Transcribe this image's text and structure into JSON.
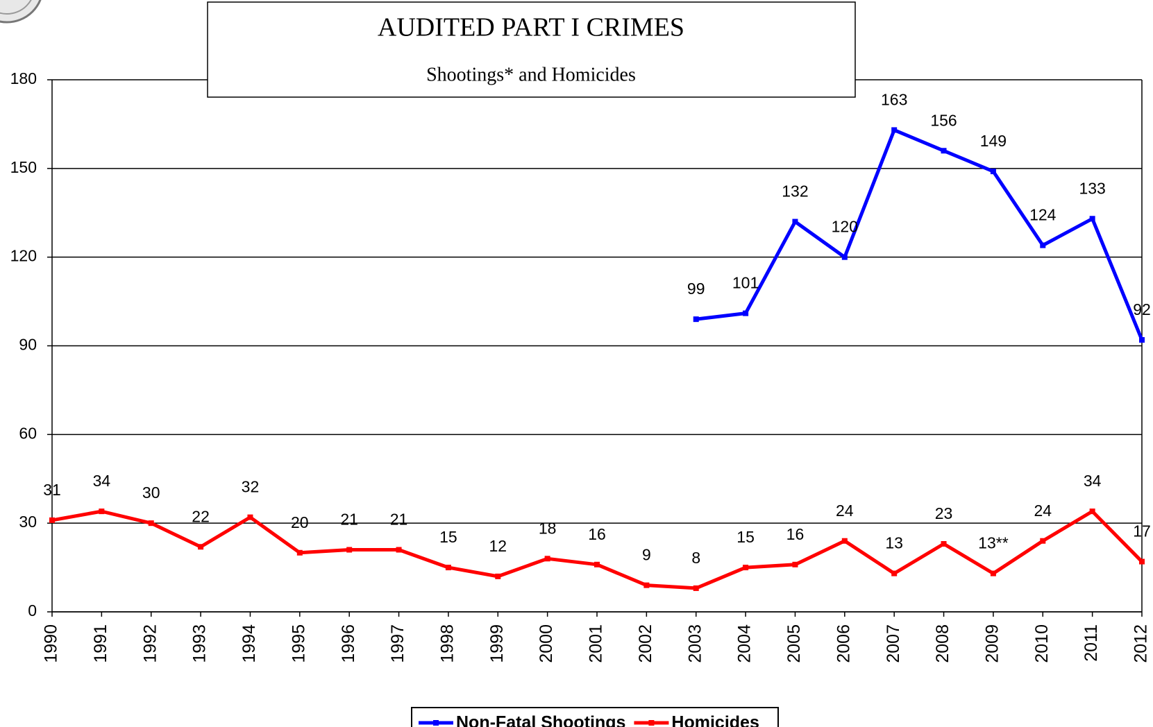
{
  "chart_data": {
    "type": "line",
    "title": "AUDITED PART I CRIMES",
    "subtitle": "Shootings* and Homicides",
    "categories": [
      "1990",
      "1991",
      "1992",
      "1993",
      "1994",
      "1995",
      "1996",
      "1997",
      "1998",
      "1999",
      "2000",
      "2001",
      "2002",
      "2003",
      "2004",
      "2005",
      "2006",
      "2007",
      "2008",
      "2009",
      "2010",
      "2011",
      "2012"
    ],
    "series": [
      {
        "name": "Non-Fatal Shootings",
        "color": "#0000ff",
        "values": [
          null,
          null,
          null,
          null,
          null,
          null,
          null,
          null,
          null,
          null,
          null,
          null,
          null,
          99,
          101,
          132,
          120,
          163,
          156,
          149,
          124,
          133,
          92
        ]
      },
      {
        "name": "Homicides",
        "color": "#ff0000",
        "values": [
          31,
          34,
          30,
          22,
          32,
          20,
          21,
          21,
          15,
          12,
          18,
          16,
          9,
          8,
          15,
          16,
          24,
          13,
          23,
          13,
          24,
          34,
          17
        ],
        "value_labels": [
          "31",
          "34",
          "30",
          "22",
          "32",
          "20",
          "21",
          "21",
          "15",
          "12",
          "18",
          "16",
          "9",
          "8",
          "15",
          "16",
          "24",
          "13",
          "23",
          "13**",
          "24",
          "34",
          "17"
        ]
      }
    ],
    "ylim": [
      0,
      180
    ],
    "yticks": [
      0,
      30,
      60,
      90,
      120,
      150,
      180
    ],
    "grid": true
  }
}
